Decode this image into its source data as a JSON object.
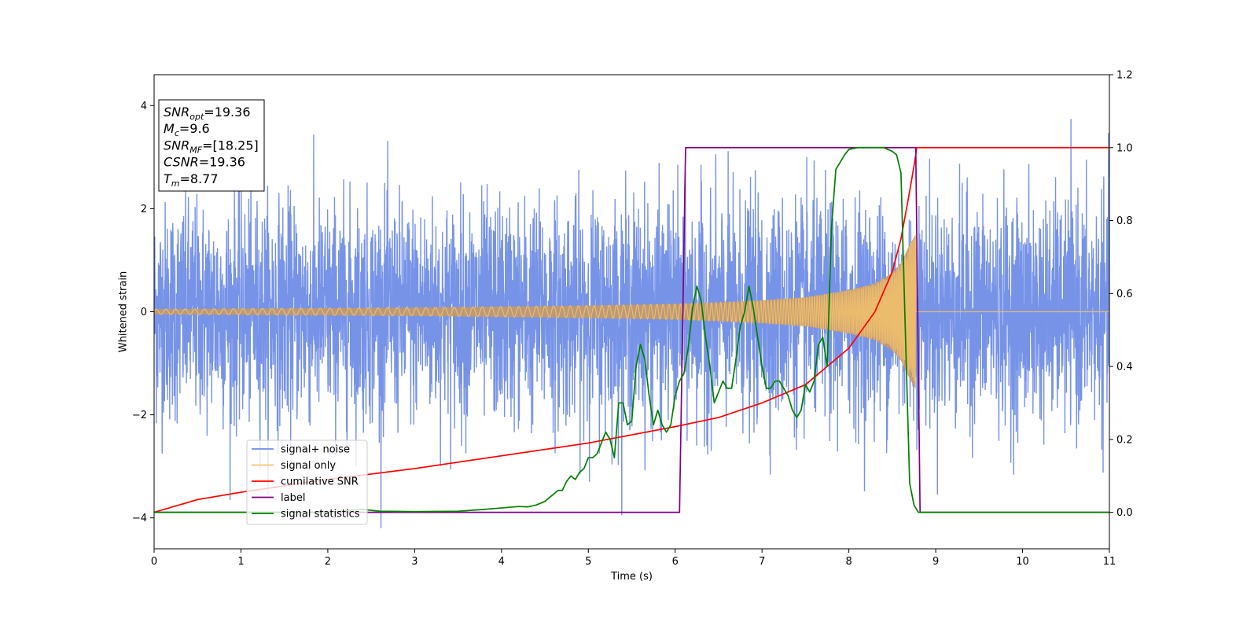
{
  "chart_data": {
    "type": "line",
    "title": "",
    "xlabel": "Time (s)",
    "ylabel": "Whitened strain",
    "xlim": [
      0,
      11
    ],
    "ylim": [
      -4.6,
      4.6
    ],
    "y2lim": [
      -0.1,
      1.2
    ],
    "x_ticks": [
      0,
      1,
      2,
      3,
      4,
      5,
      6,
      7,
      8,
      9,
      10,
      11
    ],
    "x_tick_labels": [
      "0",
      "1",
      "2",
      "3",
      "4",
      "5",
      "6",
      "7",
      "8",
      "9",
      "10",
      "11"
    ],
    "y_ticks": [
      -4,
      -2,
      0,
      2,
      4
    ],
    "y_tick_labels": [
      "−4",
      "−2",
      "0",
      "2",
      "4"
    ],
    "y2_ticks": [
      0.0,
      0.2,
      0.4,
      0.6,
      0.8,
      1.0,
      1.2
    ],
    "y2_tick_labels": [
      "0.0",
      "0.2",
      "0.4",
      "0.6",
      "0.8",
      "1.0",
      "1.2"
    ],
    "grid": false,
    "legend_position": "lower-left",
    "info_box": {
      "lines": [
        {
          "sym": "SNR",
          "sub": "opt",
          "val": "=19.36"
        },
        {
          "sym": "M",
          "sub": "c",
          "val": "=9.6"
        },
        {
          "sym": "SNR",
          "sub": "MF",
          "val": "=[18.25]"
        },
        {
          "sym": "CSNR",
          "sub": "",
          "val": "=19.36"
        },
        {
          "sym": "T",
          "sub": "m",
          "val": "=8.77"
        }
      ]
    },
    "series": [
      {
        "name": "signal+ noise",
        "axis": "left",
        "color": "#6f8de6",
        "description_values": {
          "noise_std": 1.05,
          "spike_max": 4.2,
          "spike_min": -4.15,
          "duration": 11
        }
      },
      {
        "name": "signal only",
        "axis": "left",
        "color": "#f5c26b",
        "fill_color": "#c49a6c",
        "envelope": {
          "x": [
            0,
            1,
            2,
            3,
            4,
            5,
            6,
            6.5,
            7,
            7.5,
            8,
            8.3,
            8.5,
            8.6,
            8.7,
            8.77
          ],
          "amp": [
            0.05,
            0.06,
            0.07,
            0.08,
            0.1,
            0.12,
            0.15,
            0.18,
            0.22,
            0.28,
            0.42,
            0.55,
            0.75,
            0.95,
            1.3,
            1.5
          ]
        },
        "end_time": 8.77
      },
      {
        "name": "cumilative SNR",
        "axis": "right",
        "color": "#ff0000",
        "x": [
          0,
          0.5,
          1,
          2,
          3,
          4,
          5,
          6,
          6.5,
          7,
          7.5,
          8,
          8.3,
          8.5,
          8.6,
          8.7,
          8.75,
          8.77,
          8.78,
          11
        ],
        "values": [
          0.0,
          0.035,
          0.055,
          0.09,
          0.12,
          0.155,
          0.19,
          0.235,
          0.26,
          0.3,
          0.35,
          0.45,
          0.55,
          0.66,
          0.75,
          0.88,
          0.95,
          0.98,
          1.0,
          1.0
        ]
      },
      {
        "name": "label",
        "axis": "right",
        "color": "#800080",
        "x": [
          0,
          6.05,
          6.12,
          8.77,
          8.82,
          11
        ],
        "values": [
          0.0,
          0.0,
          1.0,
          1.0,
          0.0,
          0.0
        ]
      },
      {
        "name": "signal statistics",
        "axis": "right",
        "color": "#008000",
        "x": [
          0,
          2,
          2.4,
          2.6,
          3,
          3.5,
          3.8,
          4,
          4.2,
          4.3,
          4.4,
          4.5,
          4.6,
          4.65,
          4.7,
          4.75,
          4.8,
          4.85,
          4.9,
          4.95,
          5.0,
          5.05,
          5.1,
          5.2,
          5.25,
          5.3,
          5.35,
          5.4,
          5.45,
          5.5,
          5.55,
          5.6,
          5.65,
          5.7,
          5.75,
          5.8,
          5.85,
          5.9,
          5.95,
          6.0,
          6.05,
          6.1,
          6.15,
          6.2,
          6.25,
          6.3,
          6.35,
          6.4,
          6.45,
          6.5,
          6.55,
          6.6,
          6.65,
          6.7,
          6.75,
          6.8,
          6.85,
          6.9,
          6.95,
          7.0,
          7.05,
          7.1,
          7.15,
          7.2,
          7.25,
          7.3,
          7.35,
          7.4,
          7.45,
          7.5,
          7.55,
          7.6,
          7.65,
          7.7,
          7.75,
          7.8,
          7.85,
          7.9,
          7.95,
          8.0,
          8.1,
          8.2,
          8.4,
          8.5,
          8.55,
          8.6,
          8.65,
          8.7,
          8.75,
          8.8,
          8.85,
          11
        ],
        "values": [
          0.0,
          0.0,
          0.008,
          0.003,
          0.002,
          0.003,
          0.008,
          0.012,
          0.016,
          0.015,
          0.02,
          0.03,
          0.05,
          0.06,
          0.06,
          0.085,
          0.1,
          0.09,
          0.11,
          0.12,
          0.15,
          0.15,
          0.16,
          0.22,
          0.2,
          0.15,
          0.3,
          0.3,
          0.24,
          0.25,
          0.4,
          0.46,
          0.42,
          0.32,
          0.24,
          0.28,
          0.24,
          0.22,
          0.24,
          0.32,
          0.36,
          0.38,
          0.45,
          0.56,
          0.62,
          0.58,
          0.48,
          0.4,
          0.3,
          0.33,
          0.36,
          0.34,
          0.34,
          0.42,
          0.51,
          0.55,
          0.62,
          0.56,
          0.48,
          0.4,
          0.34,
          0.34,
          0.36,
          0.36,
          0.34,
          0.32,
          0.28,
          0.26,
          0.28,
          0.35,
          0.33,
          0.36,
          0.46,
          0.48,
          0.4,
          0.78,
          0.94,
          0.96,
          0.98,
          0.995,
          1.0,
          1.0,
          1.0,
          0.99,
          0.98,
          0.93,
          0.5,
          0.08,
          0.02,
          0.0,
          0.0,
          0.0
        ]
      }
    ]
  }
}
